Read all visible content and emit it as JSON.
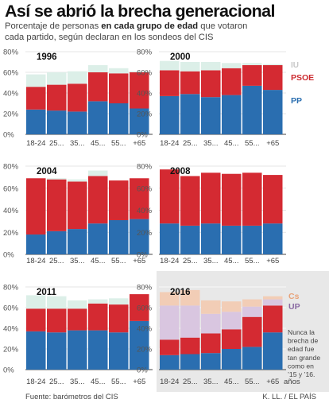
{
  "title": "Así se abrió la brecha generacional",
  "subtitle": {
    "pre": "Porcentaje de personas ",
    "bold": "en cada grupo de edad",
    "post": " que votaron cada partido, según declaran en los sondeos del CIS"
  },
  "source": "Fuente: barómetros del CIS",
  "credit": "K. LL. / EL PAÍS",
  "colors": {
    "PP": "#2a6eb0",
    "PSOE": "#d42a32",
    "IU": "#dcefe8",
    "UP": "#d9c6e0",
    "Cs": "#f2cdb6",
    "axis": "#444444",
    "grid": "#dddddd",
    "highlight_panel": "#e8e8e8",
    "legend_PSOE_text": "#cc2a2f",
    "legend_PP_text": "#2a6eb0",
    "legend_IU_text": "#c8c8c8",
    "legend_Cs_text": "#e8a37a",
    "legend_UP_text": "#8a6aa2"
  },
  "chart_data": {
    "type": "bar",
    "stacked": true,
    "categories": [
      "18-24",
      "25-34",
      "35-44",
      "45-54",
      "55-64",
      "+65"
    ],
    "tick_labels": [
      "18-24",
      "25...",
      "35...",
      "45...",
      "55...",
      "+65"
    ],
    "y_ticks": [
      "0%",
      "20%",
      "40%",
      "60%",
      "80%"
    ],
    "ylim": [
      0,
      80
    ],
    "grid": true,
    "legend_placement": "right of each panel's last bar",
    "legend_labels": {
      "IU": "IU",
      "PSOE": "PSOE",
      "PP": "PP",
      "Cs": "Cs",
      "UP": "UP"
    },
    "panels": [
      {
        "year": "1996",
        "series": [
          {
            "name": "PP",
            "values": [
              24,
              23,
              22,
              32,
              30,
              25
            ]
          },
          {
            "name": "PSOE",
            "values": [
              22,
              25,
              27,
              28,
              29,
              35
            ]
          },
          {
            "name": "IU",
            "values": [
              12,
              12,
              12,
              7,
              5,
              1
            ]
          }
        ]
      },
      {
        "year": "2000",
        "series": [
          {
            "name": "PP",
            "values": [
              37,
              39,
              36,
              38,
              47,
              43
            ]
          },
          {
            "name": "PSOE",
            "values": [
              25,
              22,
              26,
              26,
              20,
              24
            ]
          },
          {
            "name": "IU",
            "values": [
              9,
              9,
              8,
              5,
              2,
              1
            ]
          }
        ]
      },
      {
        "year": "2004",
        "series": [
          {
            "name": "PP",
            "values": [
              18,
              21,
              23,
              28,
              31,
              32
            ]
          },
          {
            "name": "PSOE",
            "values": [
              51,
              47,
              43,
              43,
              36,
              37
            ]
          },
          {
            "name": "IU",
            "values": [
              0,
              1,
              2,
              5,
              0,
              0
            ]
          }
        ]
      },
      {
        "year": "2008",
        "series": [
          {
            "name": "PP",
            "values": [
              28,
              26,
              28,
              26,
              26,
              28
            ]
          },
          {
            "name": "PSOE",
            "values": [
              49,
              45,
              46,
              47,
              48,
              44
            ]
          },
          {
            "name": "IU",
            "values": [
              0,
              0,
              0,
              0,
              0,
              0
            ]
          }
        ]
      },
      {
        "year": "2011",
        "series": [
          {
            "name": "PP",
            "values": [
              37,
              36,
              38,
              38,
              36,
              47
            ]
          },
          {
            "name": "PSOE",
            "values": [
              22,
              23,
              21,
              26,
              27,
              26
            ]
          },
          {
            "name": "IU",
            "values": [
              13,
              12,
              8,
              4,
              6,
              0
            ]
          }
        ]
      },
      {
        "year": "2016",
        "highlight": true,
        "series": [
          {
            "name": "PP",
            "values": [
              14,
              15,
              16,
              20,
              22,
              36
            ]
          },
          {
            "name": "PSOE",
            "values": [
              15,
              16,
              19,
              19,
              29,
              26
            ]
          },
          {
            "name": "UP",
            "values": [
              33,
              31,
              19,
              17,
              10,
              6
            ]
          },
          {
            "name": "Cs",
            "values": [
              13,
              15,
              13,
              10,
              7,
              3
            ]
          }
        ]
      }
    ],
    "annotation": "Nunca la brecha de edad fue tan grande como en ’15 y ’16.",
    "last_tick_suffix": "años"
  }
}
